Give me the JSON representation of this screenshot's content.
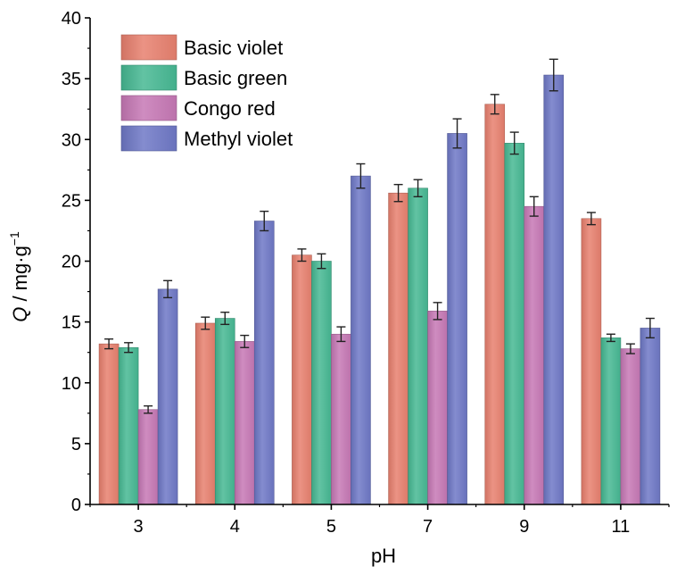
{
  "chart_data": {
    "type": "bar",
    "xlabel": "pH",
    "ylabel": "Q / mg·g",
    "ylabel_sup": "−1",
    "ylim": [
      0,
      40
    ],
    "yticks": [
      0,
      5,
      10,
      15,
      20,
      25,
      30,
      35,
      40
    ],
    "categories": [
      "3",
      "4",
      "5",
      "7",
      "9",
      "11"
    ],
    "error_bars": true,
    "legend_position": "top-left",
    "series": [
      {
        "name": "Basic violet",
        "color": "#e8806e",
        "values": [
          13.2,
          14.9,
          20.5,
          25.6,
          32.9,
          23.5
        ],
        "errors": [
          0.4,
          0.5,
          0.5,
          0.7,
          0.8,
          0.5
        ]
      },
      {
        "name": "Basic green",
        "color": "#46b893",
        "values": [
          12.9,
          15.3,
          20.0,
          26.0,
          29.7,
          13.7
        ],
        "errors": [
          0.4,
          0.5,
          0.6,
          0.7,
          0.9,
          0.3
        ]
      },
      {
        "name": "Congo red",
        "color": "#c678b5",
        "values": [
          7.8,
          13.4,
          14.0,
          15.9,
          24.5,
          12.8
        ],
        "errors": [
          0.3,
          0.5,
          0.6,
          0.7,
          0.8,
          0.4
        ]
      },
      {
        "name": "Methyl violet",
        "color": "#6e78c6",
        "values": [
          17.7,
          23.3,
          27.0,
          30.5,
          35.3,
          14.5
        ],
        "errors": [
          0.7,
          0.8,
          1.0,
          1.2,
          1.3,
          0.8
        ]
      }
    ]
  }
}
